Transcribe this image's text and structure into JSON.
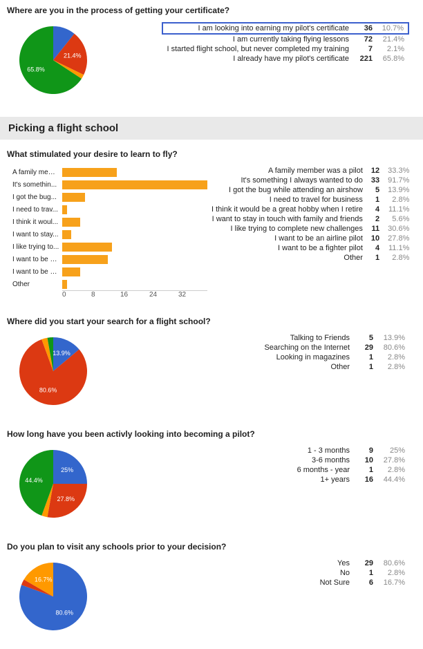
{
  "palette": {
    "blue": "#3366cc",
    "red": "#dc3912",
    "orange": "#ff9900",
    "green": "#109618",
    "bar": "#f7a11b",
    "highlight_border": "#3b5fcd",
    "muted": "#888888",
    "heading_bg": "#e9e9e9"
  },
  "q1": {
    "title": "Where are you in the process of getting your certificate?",
    "rows": [
      {
        "label": "I am looking into earning my pilot's certificate",
        "count": 36,
        "pct": "10.7%",
        "highlight": true
      },
      {
        "label": "I am currently taking flying lessons",
        "count": 72,
        "pct": "21.4%"
      },
      {
        "label": "I started flight school, but never completed my training",
        "count": 7,
        "pct": "2.1%"
      },
      {
        "label": "I already have my pilot's certificate",
        "count": 221,
        "pct": "65.8%"
      }
    ],
    "pie": {
      "size": 110,
      "slices": [
        {
          "value": 36,
          "color": "#3366cc",
          "label": ""
        },
        {
          "value": 72,
          "color": "#dc3912",
          "label": "21.4%"
        },
        {
          "value": 7,
          "color": "#ff9900",
          "label": ""
        },
        {
          "value": 221,
          "color": "#109618",
          "label": "65.8%"
        }
      ]
    }
  },
  "section_heading": "Picking a flight school",
  "q2": {
    "title": "What stimulated your desire to learn to fly?",
    "max": 33,
    "axis": [
      "0",
      "8",
      "16",
      "24",
      "32"
    ],
    "rows": [
      {
        "short": "A family mem...",
        "label": "A family member was a pilot",
        "count": 12,
        "pct": "33.3%"
      },
      {
        "short": "It's somethin...",
        "label": "It's something I always wanted to do",
        "count": 33,
        "pct": "91.7%"
      },
      {
        "short": "I got the bug...",
        "label": "I got the bug while attending an airshow",
        "count": 5,
        "pct": "13.9%"
      },
      {
        "short": "I need to trav...",
        "label": "I need to travel for business",
        "count": 1,
        "pct": "2.8%"
      },
      {
        "short": "I think it woul...",
        "label": "I think it would be a great hobby when I retire",
        "count": 4,
        "pct": "11.1%"
      },
      {
        "short": "I want to stay...",
        "label": "I want to stay in touch with family and friends",
        "count": 2,
        "pct": "5.6%"
      },
      {
        "short": "I like trying to...",
        "label": "I like trying to complete new challenges",
        "count": 11,
        "pct": "30.6%"
      },
      {
        "short": "I want to be a...",
        "label": "I want to be an airline pilot",
        "count": 10,
        "pct": "27.8%"
      },
      {
        "short": "I want to be a...",
        "label": "I want to be a fighter pilot",
        "count": 4,
        "pct": "11.1%"
      },
      {
        "short": "Other",
        "label": "Other",
        "count": 1,
        "pct": "2.8%"
      }
    ]
  },
  "q3": {
    "title": "Where did you start your search for a flight school?",
    "rows": [
      {
        "label": "Talking to Friends",
        "count": 5,
        "pct": "13.9%"
      },
      {
        "label": "Searching on the Internet",
        "count": 29,
        "pct": "80.6%"
      },
      {
        "label": "Looking in magazines",
        "count": 1,
        "pct": "2.8%"
      },
      {
        "label": "Other",
        "count": 1,
        "pct": "2.8%"
      }
    ],
    "pie": {
      "size": 110,
      "slices": [
        {
          "value": 5,
          "color": "#3366cc",
          "label": "13.9%"
        },
        {
          "value": 29,
          "color": "#dc3912",
          "label": "80.6%"
        },
        {
          "value": 1,
          "color": "#ff9900",
          "label": ""
        },
        {
          "value": 1,
          "color": "#109618",
          "label": ""
        }
      ]
    }
  },
  "q4": {
    "title": "How long have you been activly looking into becoming a pilot?",
    "rows": [
      {
        "label": "1 - 3 months",
        "count": 9,
        "pct": "25%"
      },
      {
        "label": "3-6 months",
        "count": 10,
        "pct": "27.8%"
      },
      {
        "label": "6 months - year",
        "count": 1,
        "pct": "2.8%"
      },
      {
        "label": "1+ years",
        "count": 16,
        "pct": "44.4%"
      }
    ],
    "pie": {
      "size": 110,
      "slices": [
        {
          "value": 9,
          "color": "#3366cc",
          "label": "25%"
        },
        {
          "value": 10,
          "color": "#dc3912",
          "label": "27.8%"
        },
        {
          "value": 1,
          "color": "#ff9900",
          "label": ""
        },
        {
          "value": 16,
          "color": "#109618",
          "label": "44.4%"
        }
      ]
    }
  },
  "q5": {
    "title": "Do you plan to visit any schools prior to your decision?",
    "rows": [
      {
        "label": "Yes",
        "count": 29,
        "pct": "80.6%"
      },
      {
        "label": "No",
        "count": 1,
        "pct": "2.8%"
      },
      {
        "label": "Not Sure",
        "count": 6,
        "pct": "16.7%"
      }
    ],
    "pie": {
      "size": 110,
      "slices": [
        {
          "value": 29,
          "color": "#3366cc",
          "label": "80.6%"
        },
        {
          "value": 1,
          "color": "#dc3912",
          "label": ""
        },
        {
          "value": 6,
          "color": "#ff9900",
          "label": "16.7%"
        }
      ]
    }
  }
}
